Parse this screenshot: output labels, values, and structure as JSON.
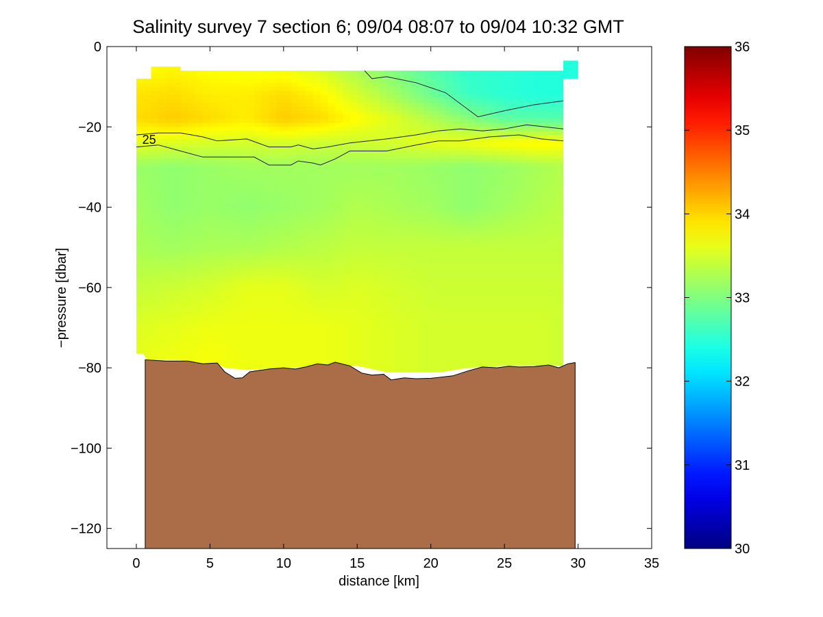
{
  "chart_data": {
    "type": "heatmap",
    "title": "Salinity survey 7 section 6; 09/04 08:07 to 09/04 10:32 GMT",
    "xlabel": "distance [km]",
    "ylabel": "−pressure [dbar]",
    "xlim": [
      -2,
      35
    ],
    "ylim": [
      -125,
      0
    ],
    "xticks": [
      0,
      5,
      10,
      15,
      20,
      25,
      30,
      35
    ],
    "yticks": [
      0,
      -20,
      -40,
      -60,
      -80,
      -100,
      -120
    ],
    "ytick_labels": [
      "0",
      "−20",
      "−40",
      "−60",
      "−80",
      "−100",
      "−120"
    ],
    "grid": false,
    "colorbar": {
      "range": [
        30,
        36
      ],
      "ticks": [
        30,
        31,
        32,
        33,
        34,
        35,
        36
      ],
      "colormap": "jet"
    },
    "contour_labels": [
      {
        "text": "25",
        "x": 0.4,
        "y": -23
      }
    ],
    "salinity_grid": {
      "x": [
        0,
        2.5,
        5,
        7.5,
        10,
        12.5,
        15,
        17.5,
        20,
        22.5,
        25,
        27.5,
        29
      ],
      "depth": [
        -6,
        -12,
        -18,
        -24,
        -30,
        -40,
        -50,
        -60,
        -70,
        -77
      ],
      "values": [
        [
          33.75,
          33.8,
          33.75,
          33.7,
          33.7,
          33.55,
          33.25,
          33.0,
          32.75,
          32.55,
          32.5,
          32.45,
          32.45
        ],
        [
          33.9,
          33.95,
          33.85,
          33.85,
          33.95,
          33.8,
          33.5,
          33.2,
          32.9,
          32.6,
          32.5,
          32.45,
          32.45
        ],
        [
          33.95,
          34.05,
          33.95,
          33.85,
          34.05,
          33.95,
          33.75,
          33.55,
          33.3,
          33.05,
          32.8,
          32.75,
          32.75
        ],
        [
          33.6,
          33.55,
          33.5,
          33.5,
          33.5,
          33.45,
          33.45,
          33.5,
          33.6,
          33.65,
          33.75,
          33.8,
          33.75
        ],
        [
          33.15,
          33.1,
          33.15,
          33.2,
          33.2,
          33.2,
          33.2,
          33.2,
          33.15,
          33.1,
          33.15,
          33.25,
          33.3
        ],
        [
          33.2,
          33.1,
          33.15,
          33.1,
          33.15,
          33.2,
          33.3,
          33.25,
          33.2,
          33.1,
          33.2,
          33.3,
          33.35
        ],
        [
          33.25,
          33.2,
          33.25,
          33.25,
          33.3,
          33.35,
          33.4,
          33.4,
          33.4,
          33.4,
          33.4,
          33.4,
          33.4
        ],
        [
          33.4,
          33.45,
          33.5,
          33.6,
          33.6,
          33.5,
          33.55,
          33.5,
          33.45,
          33.45,
          33.45,
          33.45,
          33.45
        ],
        [
          33.55,
          33.6,
          33.65,
          33.65,
          33.65,
          33.65,
          33.6,
          33.55,
          33.5,
          33.5,
          33.5,
          33.5,
          33.45
        ],
        [
          33.6,
          33.65,
          33.7,
          33.65,
          33.65,
          33.65,
          33.6,
          33.55,
          33.5,
          33.5,
          33.5,
          33.5,
          33.45
        ]
      ]
    },
    "data_region": {
      "top_outline": [
        [
          0,
          -8
        ],
        [
          1,
          -8
        ],
        [
          1,
          -5
        ],
        [
          3,
          -5
        ],
        [
          3,
          -6
        ],
        [
          29,
          -6
        ],
        [
          29,
          -8
        ],
        [
          30,
          -8
        ],
        [
          30,
          -3.5
        ],
        [
          28,
          -3.5
        ]
      ],
      "bottom_outline": [
        [
          0,
          -76.5
        ],
        [
          0.5,
          -76.5
        ],
        [
          0.7,
          -78
        ],
        [
          3,
          -78
        ],
        [
          3.5,
          -79
        ],
        [
          5.5,
          -79
        ],
        [
          6,
          -80
        ],
        [
          7.5,
          -80.5
        ],
        [
          10,
          -80
        ],
        [
          15,
          -79.5
        ],
        [
          17.5,
          -81.5
        ],
        [
          20,
          -81.5
        ],
        [
          22.5,
          -80
        ],
        [
          25,
          -79.5
        ],
        [
          29,
          -79.5
        ]
      ]
    },
    "contours": [
      [
        [
          15.5,
          -6
        ],
        [
          16,
          -8
        ],
        [
          17,
          -7.5
        ],
        [
          19,
          -9
        ],
        [
          21,
          -11.5
        ],
        [
          23.2,
          -17.5
        ],
        [
          25,
          -16
        ],
        [
          27,
          -14.5
        ],
        [
          29,
          -13.5
        ]
      ],
      [
        [
          0,
          -22
        ],
        [
          1.5,
          -21.5
        ],
        [
          3,
          -21.5
        ],
        [
          4.5,
          -22.5
        ],
        [
          5.5,
          -23.5
        ],
        [
          7.5,
          -23
        ],
        [
          9,
          -25
        ],
        [
          10.5,
          -25
        ],
        [
          11,
          -24.5
        ],
        [
          12,
          -25.5
        ],
        [
          13,
          -25
        ],
        [
          14.5,
          -24
        ],
        [
          17,
          -23
        ],
        [
          19,
          -22
        ],
        [
          20.5,
          -21
        ],
        [
          22,
          -20.5
        ],
        [
          23.5,
          -21
        ],
        [
          25,
          -20.5
        ],
        [
          26.5,
          -19.5
        ],
        [
          29,
          -20.5
        ]
      ],
      [
        [
          0,
          -25
        ],
        [
          1.5,
          -24.5
        ],
        [
          3,
          -26
        ],
        [
          4.5,
          -27.5
        ],
        [
          6,
          -27.5
        ],
        [
          8,
          -27.5
        ],
        [
          9,
          -29.5
        ],
        [
          10.5,
          -29.5
        ],
        [
          11,
          -28.5
        ],
        [
          12,
          -29
        ],
        [
          12.5,
          -29.5
        ],
        [
          13.5,
          -28
        ],
        [
          14.5,
          -26
        ],
        [
          17,
          -26
        ],
        [
          19,
          -24.5
        ],
        [
          20.5,
          -23.5
        ],
        [
          22,
          -23.5
        ],
        [
          24,
          -22.5
        ],
        [
          26,
          -22
        ],
        [
          27.5,
          -23
        ],
        [
          29,
          -23.5
        ]
      ]
    ],
    "bathymetry": {
      "color": "#ab6d48",
      "profile": [
        [
          0.6,
          -78
        ],
        [
          2,
          -78.3
        ],
        [
          3.5,
          -78.3
        ],
        [
          4.5,
          -79
        ],
        [
          5.5,
          -78.8
        ],
        [
          6,
          -81
        ],
        [
          6.7,
          -82.6
        ],
        [
          7.2,
          -82.5
        ],
        [
          7.7,
          -81
        ],
        [
          9,
          -80.3
        ],
        [
          10,
          -80
        ],
        [
          10.8,
          -80.3
        ],
        [
          11.5,
          -79.8
        ],
        [
          12.3,
          -79
        ],
        [
          13,
          -79.3
        ],
        [
          13.5,
          -78.6
        ],
        [
          14.5,
          -79.5
        ],
        [
          15.3,
          -81.3
        ],
        [
          16,
          -81.8
        ],
        [
          16.8,
          -81.6
        ],
        [
          17.3,
          -83
        ],
        [
          18.2,
          -82.5
        ],
        [
          19,
          -82.7
        ],
        [
          20,
          -82.6
        ],
        [
          21.5,
          -82
        ],
        [
          22.5,
          -80.8
        ],
        [
          23.5,
          -79.8
        ],
        [
          24.5,
          -80
        ],
        [
          25.3,
          -79.6
        ],
        [
          26,
          -79.8
        ],
        [
          27,
          -79.7
        ],
        [
          28,
          -79.3
        ],
        [
          28.7,
          -80
        ],
        [
          29.3,
          -79
        ],
        [
          29.8,
          -78.7
        ]
      ]
    }
  }
}
